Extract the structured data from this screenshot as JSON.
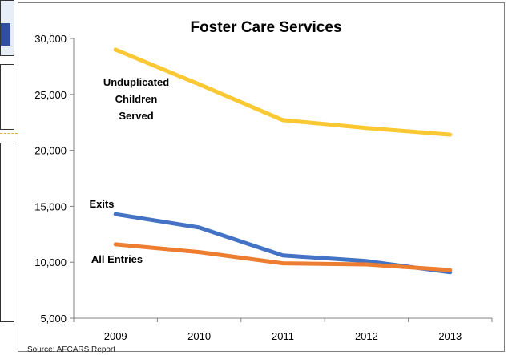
{
  "chart_data": {
    "type": "line",
    "title": "Foster Care Services",
    "x": [
      "2009",
      "2010",
      "2011",
      "2012",
      "2013"
    ],
    "xlabel": "",
    "ylabel": "",
    "ylim": [
      5000,
      30000
    ],
    "yticks": [
      "5,000",
      "10,000",
      "15,000",
      "20,000",
      "25,000",
      "30,000"
    ],
    "grid": false,
    "series": [
      {
        "name": "Unduplicated Children Served",
        "label_lines": [
          "Unduplicated",
          "Children",
          "Served"
        ],
        "color": "#f9c833",
        "values": [
          29000,
          25900,
          22700,
          22000,
          21400
        ]
      },
      {
        "name": "Exits",
        "label_lines": [
          "Exits"
        ],
        "color": "#4472c4",
        "values": [
          14300,
          13100,
          10600,
          10100,
          9100
        ]
      },
      {
        "name": "All Entries",
        "label_lines": [
          "All Entries"
        ],
        "color": "#ed7d31",
        "values": [
          11600,
          10900,
          9900,
          9800,
          9300
        ]
      }
    ],
    "source": "Source: AFCARS Report"
  }
}
